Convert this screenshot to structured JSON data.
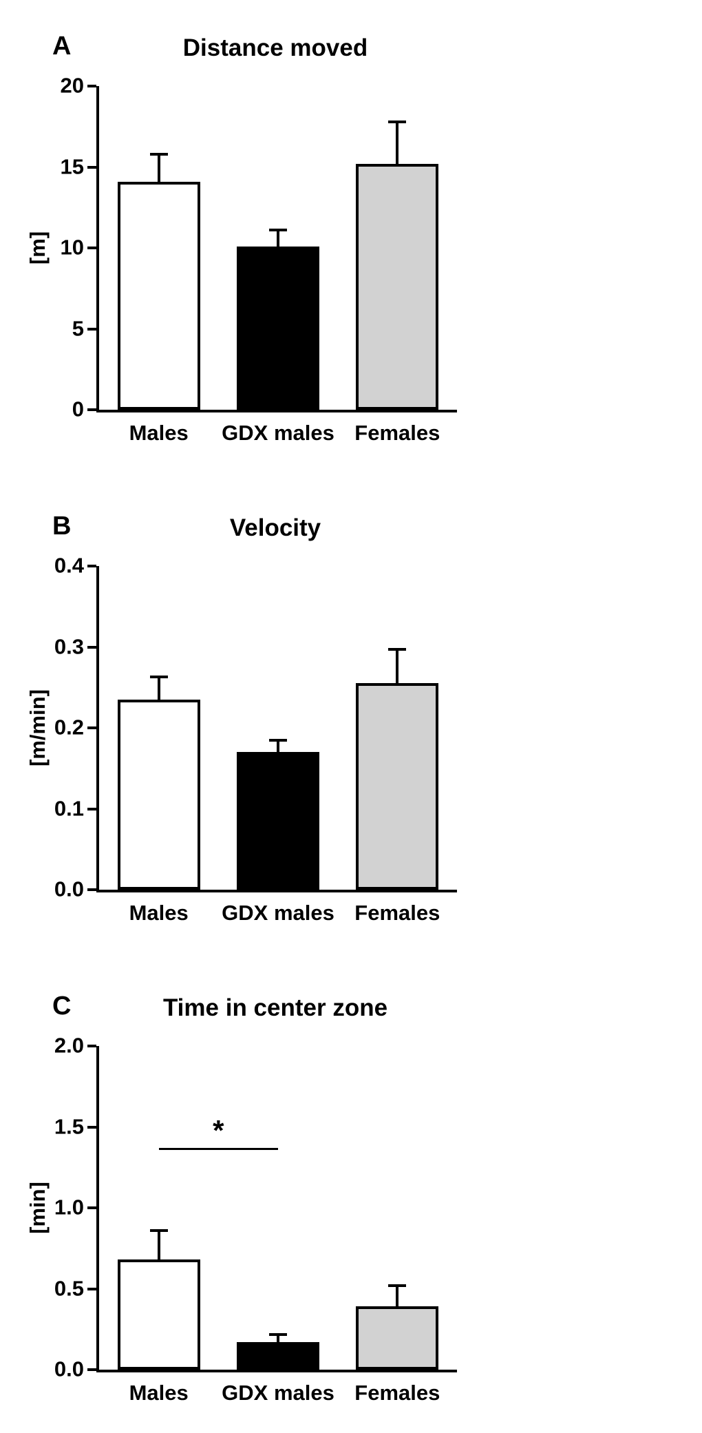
{
  "figure": {
    "background": "#ffffff",
    "axis_color": "#000000"
  },
  "chart_data": [
    {
      "type": "bar",
      "panel_label": "A",
      "title": "Distance moved",
      "ylabel": "[m]",
      "categories": [
        "Males",
        "GDX males",
        "Females"
      ],
      "values": [
        14.1,
        10.1,
        15.2
      ],
      "errors": [
        1.7,
        1.0,
        2.6
      ],
      "bar_colors": [
        "#ffffff",
        "#000000",
        "#d2d2d2"
      ],
      "ylim": [
        0,
        20
      ],
      "yticks": [
        {
          "value": 0,
          "label": "0"
        },
        {
          "value": 5,
          "label": "5"
        },
        {
          "value": 10,
          "label": "10"
        },
        {
          "value": 15,
          "label": "15"
        },
        {
          "value": 20,
          "label": "20"
        }
      ],
      "grid": false,
      "legend": null
    },
    {
      "type": "bar",
      "panel_label": "B",
      "title": "Velocity",
      "ylabel": "[m/min]",
      "categories": [
        "Males",
        "GDX males",
        "Females"
      ],
      "values": [
        0.235,
        0.17,
        0.255
      ],
      "errors": [
        0.028,
        0.015,
        0.042
      ],
      "bar_colors": [
        "#ffffff",
        "#000000",
        "#d2d2d2"
      ],
      "ylim": [
        0,
        0.4
      ],
      "yticks": [
        {
          "value": 0,
          "label": "0.0"
        },
        {
          "value": 0.1,
          "label": "0.1"
        },
        {
          "value": 0.2,
          "label": "0.2"
        },
        {
          "value": 0.3,
          "label": "0.3"
        },
        {
          "value": 0.4,
          "label": "0.4"
        }
      ],
      "grid": false,
      "legend": null
    },
    {
      "type": "bar",
      "panel_label": "C",
      "title": "Time in center zone",
      "ylabel": "[min]",
      "categories": [
        "Males",
        "GDX males",
        "Females"
      ],
      "values": [
        0.68,
        0.17,
        0.39
      ],
      "errors": [
        0.18,
        0.045,
        0.13
      ],
      "bar_colors": [
        "#ffffff",
        "#000000",
        "#d2d2d2"
      ],
      "ylim": [
        0,
        2.0
      ],
      "yticks": [
        {
          "value": 0,
          "label": "0.0"
        },
        {
          "value": 0.5,
          "label": "0.5"
        },
        {
          "value": 1.0,
          "label": "1.0"
        },
        {
          "value": 1.5,
          "label": "1.5"
        },
        {
          "value": 2.0,
          "label": "2.0"
        }
      ],
      "grid": false,
      "legend": null,
      "significance": {
        "label": "*",
        "between": [
          "Males",
          "GDX males"
        ],
        "from_index": 0,
        "to_index": 1,
        "y_value": 1.37
      }
    }
  ]
}
